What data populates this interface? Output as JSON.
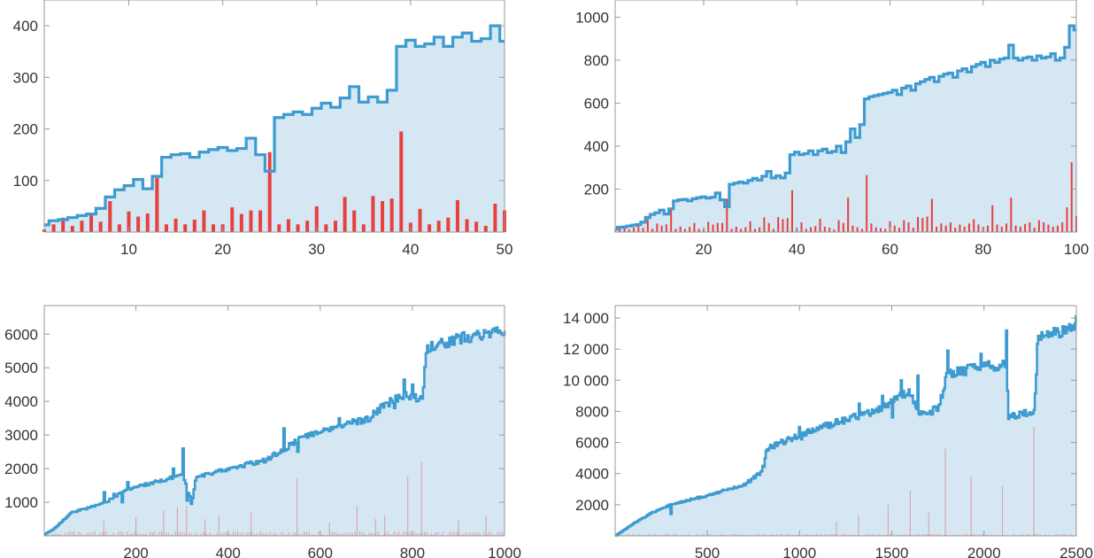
{
  "colors": {
    "step_line": "#3d9bd0",
    "step_fill": "#d4e7f3",
    "spikes": "#e8403f",
    "frame": "#9a9a9a",
    "tick_text": "#333333"
  },
  "chart_data": [
    {
      "type": "area",
      "title": "",
      "xlabel": "",
      "ylabel": "",
      "xlim": [
        1,
        50
      ],
      "ylim": [
        0,
        450
      ],
      "xticks": [
        10,
        20,
        30,
        40,
        50
      ],
      "yticks": [
        100,
        200,
        300,
        400
      ],
      "ytick_labels": [
        "100",
        "200",
        "300",
        "400"
      ],
      "grid": false,
      "series": [
        {
          "kind": "step-area",
          "x_start": 1,
          "values": [
            14,
            22,
            24,
            28,
            32,
            35,
            46,
            68,
            82,
            90,
            102,
            84,
            108,
            145,
            150,
            152,
            145,
            155,
            160,
            164,
            158,
            162,
            182,
            150,
            118,
            222,
            228,
            233,
            228,
            240,
            250,
            242,
            260,
            282,
            252,
            262,
            252,
            275,
            360,
            372,
            360,
            365,
            378,
            360,
            378,
            386,
            370,
            375,
            400,
            370
          ]
        },
        {
          "kind": "spikes",
          "x_start": 1,
          "values": [
            5,
            15,
            28,
            12,
            22,
            35,
            20,
            60,
            15,
            40,
            30,
            36,
            105,
            15,
            26,
            15,
            24,
            42,
            15,
            15,
            48,
            35,
            42,
            42,
            155,
            15,
            25,
            15,
            22,
            50,
            15,
            22,
            68,
            42,
            15,
            70,
            60,
            65,
            195,
            18,
            45,
            15,
            22,
            28,
            62,
            25,
            20,
            12,
            55,
            42
          ]
        }
      ]
    },
    {
      "type": "area",
      "title": "",
      "xlabel": "",
      "ylabel": "",
      "xlim": [
        1,
        100
      ],
      "ylim": [
        0,
        1080
      ],
      "xticks": [
        20,
        40,
        60,
        80,
        100
      ],
      "yticks": [
        200,
        400,
        600,
        800,
        1000
      ],
      "ytick_labels": [
        "200",
        "400",
        "600",
        "800",
        "1000"
      ],
      "grid": false,
      "series": [
        {
          "kind": "step-area",
          "x_start": 1,
          "values": [
            14,
            22,
            24,
            28,
            32,
            35,
            46,
            68,
            82,
            90,
            102,
            84,
            108,
            145,
            150,
            152,
            145,
            155,
            160,
            164,
            158,
            162,
            182,
            150,
            118,
            222,
            228,
            233,
            228,
            240,
            250,
            242,
            260,
            282,
            252,
            262,
            252,
            275,
            360,
            372,
            360,
            365,
            378,
            360,
            378,
            386,
            370,
            375,
            400,
            370,
            420,
            480,
            440,
            500,
            620,
            630,
            635,
            640,
            645,
            650,
            660,
            640,
            670,
            680,
            660,
            690,
            700,
            710,
            720,
            700,
            725,
            735,
            740,
            720,
            750,
            760,
            745,
            770,
            780,
            790,
            770,
            800,
            790,
            805,
            810,
            870,
            810,
            800,
            810,
            815,
            800,
            820,
            810,
            815,
            830,
            800,
            810,
            860,
            960,
            940
          ]
        },
        {
          "kind": "spikes",
          "x_start": 1,
          "values": [
            5,
            15,
            28,
            12,
            22,
            35,
            20,
            60,
            15,
            40,
            30,
            36,
            105,
            15,
            26,
            15,
            24,
            42,
            15,
            15,
            48,
            35,
            42,
            42,
            155,
            15,
            25,
            15,
            22,
            50,
            15,
            22,
            68,
            42,
            15,
            70,
            60,
            65,
            195,
            18,
            45,
            15,
            22,
            28,
            62,
            25,
            20,
            12,
            55,
            42,
            160,
            30,
            22,
            15,
            265,
            40,
            22,
            18,
            15,
            50,
            30,
            20,
            55,
            45,
            20,
            70,
            65,
            72,
            155,
            25,
            40,
            30,
            45,
            20,
            35,
            25,
            40,
            60,
            35,
            25,
            30,
            125,
            35,
            25,
            40,
            160,
            30,
            25,
            38,
            45,
            20,
            55,
            45,
            35,
            25,
            30,
            45,
            115,
            325,
            75
          ]
        }
      ]
    },
    {
      "type": "area",
      "title": "",
      "xlabel": "",
      "ylabel": "",
      "xlim": [
        1,
        1000
      ],
      "ylim": [
        0,
        6850
      ],
      "xticks": [
        200,
        400,
        600,
        800,
        1000
      ],
      "yticks": [
        1000,
        2000,
        3000,
        4000,
        5000,
        6000
      ],
      "ytick_labels": [
        "1000",
        "2000",
        "3000",
        "4000",
        "5000",
        "6000"
      ],
      "grid": false,
      "series": [
        {
          "kind": "step-area",
          "anchors": [
            [
              0,
              40
            ],
            [
              20,
              200
            ],
            [
              40,
              450
            ],
            [
              60,
              700
            ],
            [
              100,
              850
            ],
            [
              140,
              1050
            ],
            [
              180,
              1380
            ],
            [
              240,
              1600
            ],
            [
              300,
              1800
            ],
            [
              320,
              1000
            ],
            [
              330,
              1750
            ],
            [
              400,
              2000
            ],
            [
              480,
              2250
            ],
            [
              540,
              2750
            ],
            [
              560,
              2950
            ],
            [
              640,
              3300
            ],
            [
              700,
              3450
            ],
            [
              740,
              3900
            ],
            [
              780,
              4200
            ],
            [
              820,
              4050
            ],
            [
              830,
              5600
            ],
            [
              900,
              5850
            ],
            [
              1000,
              6150
            ]
          ],
          "spikes_up": [
            [
              130,
              1300
            ],
            [
              150,
              1250
            ],
            [
              180,
              1600
            ],
            [
              280,
              2000
            ],
            [
              300,
              2600
            ],
            [
              310,
              2550
            ],
            [
              520,
              3200
            ],
            [
              550,
              3400
            ],
            [
              640,
              3500
            ],
            [
              760,
              4600
            ],
            [
              780,
              4650
            ],
            [
              800,
              4500
            ]
          ],
          "dips": [
            [
              170,
              1000
            ],
            [
              310,
              1050
            ],
            [
              320,
              950
            ],
            [
              550,
              2500
            ],
            [
              760,
              3800
            ]
          ]
        },
        {
          "kind": "spikes",
          "sample_every": 5,
          "tall_spikes": [
            [
              130,
              450
            ],
            [
              200,
              550
            ],
            [
              260,
              750
            ],
            [
              290,
              850
            ],
            [
              310,
              900
            ],
            [
              350,
              500
            ],
            [
              380,
              600
            ],
            [
              450,
              700
            ],
            [
              550,
              1700
            ],
            [
              620,
              400
            ],
            [
              680,
              900
            ],
            [
              720,
              500
            ],
            [
              740,
              600
            ],
            [
              790,
              1750
            ],
            [
              820,
              2200
            ],
            [
              900,
              450
            ],
            [
              960,
              600
            ]
          ]
        }
      ]
    },
    {
      "type": "area",
      "title": "",
      "xlabel": "",
      "ylabel": "",
      "xlim": [
        1,
        2500
      ],
      "ylim": [
        0,
        14800
      ],
      "xticks": [
        500,
        1000,
        1500,
        2000,
        2500
      ],
      "xtick_labels": [
        "500",
        "1000",
        "1500",
        "2000",
        "2500"
      ],
      "yticks": [
        2000,
        4000,
        6000,
        8000,
        10000,
        12000,
        14000
      ],
      "ytick_labels": [
        "2000",
        "4000",
        "6000",
        "8000",
        "10 000",
        "12 000",
        "14 000"
      ],
      "grid": false,
      "series": [
        {
          "kind": "step-area",
          "anchors": [
            [
              0,
              0
            ],
            [
              100,
              800
            ],
            [
              200,
              1500
            ],
            [
              300,
              2000
            ],
            [
              500,
              2600
            ],
            [
              700,
              3300
            ],
            [
              800,
              4200
            ],
            [
              820,
              5600
            ],
            [
              1000,
              6500
            ],
            [
              1200,
              7300
            ],
            [
              1400,
              8000
            ],
            [
              1600,
              9300
            ],
            [
              1640,
              7700
            ],
            [
              1750,
              8200
            ],
            [
              1800,
              10400
            ],
            [
              2000,
              10900
            ],
            [
              2120,
              11000
            ],
            [
              2130,
              7600
            ],
            [
              2270,
              8000
            ],
            [
              2290,
              12700
            ],
            [
              2400,
              13100
            ],
            [
              2500,
              13500
            ]
          ],
          "spikes_up": [
            [
              300,
              2600
            ],
            [
              800,
              4500
            ],
            [
              1000,
              7000
            ],
            [
              1320,
              8500
            ],
            [
              1450,
              9000
            ],
            [
              1550,
              10000
            ],
            [
              1640,
              10300
            ],
            [
              1800,
              11900
            ],
            [
              1980,
              11700
            ],
            [
              2120,
              13200
            ],
            [
              2500,
              14100
            ]
          ],
          "dips": [
            [
              300,
              1400
            ],
            [
              1010,
              6200
            ],
            [
              1500,
              7600
            ]
          ]
        },
        {
          "kind": "spikes",
          "sample_every": 12,
          "tall_spikes": [
            [
              1480,
              2000
            ],
            [
              1600,
              2900
            ],
            [
              1790,
              5600
            ],
            [
              1930,
              3800
            ],
            [
              2100,
              3200
            ],
            [
              2270,
              7000
            ],
            [
              1200,
              900
            ],
            [
              1320,
              1300
            ],
            [
              1700,
              1500
            ]
          ]
        }
      ]
    }
  ]
}
